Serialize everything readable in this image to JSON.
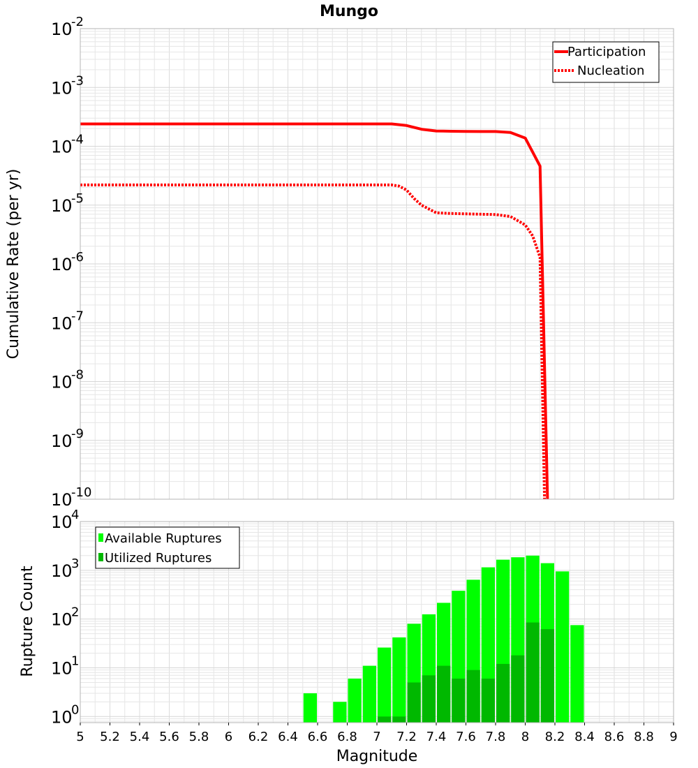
{
  "colors": {
    "rate": "#ff0000",
    "available": "#00ff00",
    "utilized": "#00b800",
    "grid": "#e6e6e6",
    "frame": "#b4b4b4"
  },
  "chart_data": [
    {
      "type": "line",
      "title": "Mungo",
      "xlabel": "Magnitude",
      "ylabel": "Cumulative Rate (per yr)",
      "yscale": "log",
      "xlim": [
        5,
        9
      ],
      "ylim": [
        1e-10,
        0.01
      ],
      "ytick_exponents": [
        "-10",
        "-9",
        "-8",
        "-7",
        "-6",
        "-5",
        "-4",
        "-3",
        "-2"
      ],
      "legend_position": "top-right",
      "series": [
        {
          "name": "Participation",
          "style": "solid",
          "x": [
            5.0,
            7.1,
            7.2,
            7.3,
            7.4,
            7.5,
            7.6,
            7.7,
            7.8,
            7.9,
            8.0,
            8.1,
            8.15
          ],
          "y": [
            0.00024,
            0.00024,
            0.000225,
            0.000195,
            0.000182,
            0.00018,
            0.000179,
            0.000178,
            0.000178,
            0.000172,
            0.000138,
            4.6e-05,
            1e-10
          ]
        },
        {
          "name": "Nucleation",
          "style": "dotted",
          "x": [
            5.0,
            7.1,
            7.15,
            7.2,
            7.25,
            7.3,
            7.4,
            7.5,
            7.6,
            7.7,
            7.8,
            7.9,
            8.0,
            8.05,
            8.1,
            8.13
          ],
          "y": [
            2.2e-05,
            2.2e-05,
            2.1e-05,
            1.8e-05,
            1.3e-05,
            1e-05,
            7.4e-06,
            7.2e-06,
            7.1e-06,
            7e-06,
            6.9e-06,
            6.4e-06,
            4.6e-06,
            3e-06,
            1.3e-06,
            1e-10
          ]
        }
      ]
    },
    {
      "type": "bar",
      "xlabel": "Magnitude",
      "ylabel": "Rupture Count",
      "yscale": "log",
      "xlim": [
        5,
        9
      ],
      "ylim": [
        0.75,
        10000
      ],
      "xticks": [
        "5",
        "5.2",
        "5.4",
        "5.6",
        "5.8",
        "6",
        "6.2",
        "6.4",
        "6.6",
        "6.8",
        "7",
        "7.2",
        "7.4",
        "7.6",
        "7.8",
        "8",
        "8.2",
        "8.4",
        "8.6",
        "8.8",
        "9"
      ],
      "ytick_exponents": [
        "0",
        "1",
        "2",
        "3",
        "4"
      ],
      "legend_position": "top-left",
      "series": [
        {
          "name": "Available Ruptures",
          "x": [
            6.55,
            6.75,
            6.85,
            6.95,
            7.05,
            7.15,
            7.25,
            7.35,
            7.45,
            7.55,
            7.65,
            7.75,
            7.85,
            7.95,
            8.05,
            8.15,
            8.25,
            8.35
          ],
          "values": [
            3,
            2,
            6,
            11,
            26,
            42,
            80,
            125,
            215,
            380,
            640,
            1150,
            1650,
            1850,
            2000,
            1400,
            950,
            75
          ]
        },
        {
          "name": "Utilized Ruptures",
          "x": [
            7.05,
            7.15,
            7.25,
            7.35,
            7.45,
            7.55,
            7.65,
            7.75,
            7.85,
            7.95,
            8.05,
            8.15
          ],
          "values": [
            1,
            1,
            5,
            7,
            11,
            6,
            9,
            6,
            12,
            18,
            85,
            62
          ]
        }
      ]
    }
  ]
}
